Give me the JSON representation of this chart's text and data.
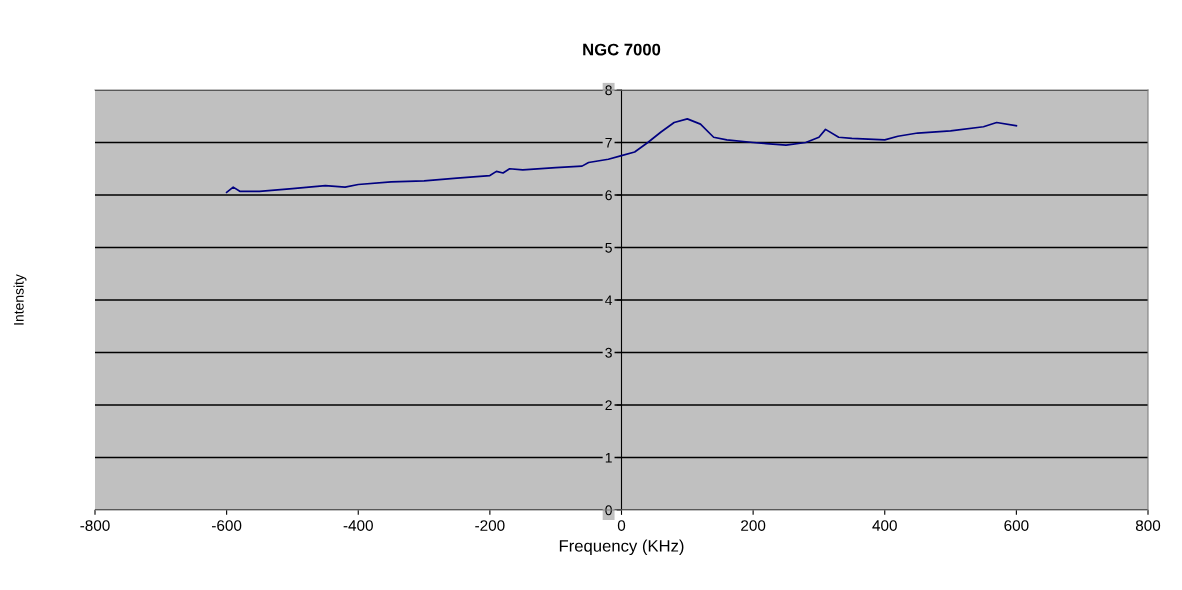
{
  "chart_data": {
    "type": "line",
    "title": "NGC 7000",
    "xlabel": "Frequency (KHz)",
    "ylabel": "Intensity",
    "x": [
      -600,
      -590,
      -580,
      -550,
      -500,
      -450,
      -420,
      -400,
      -350,
      -300,
      -250,
      -200,
      -190,
      -180,
      -170,
      -150,
      -100,
      -60,
      -50,
      -20,
      0,
      20,
      40,
      60,
      80,
      100,
      120,
      140,
      160,
      200,
      220,
      250,
      280,
      300,
      310,
      330,
      350,
      400,
      420,
      450,
      500,
      550,
      570,
      600
    ],
    "series": [
      {
        "color": "#000080",
        "values": [
          6.05,
          6.15,
          6.07,
          6.07,
          6.12,
          6.18,
          6.15,
          6.2,
          6.25,
          6.27,
          6.32,
          6.37,
          6.45,
          6.42,
          6.5,
          6.48,
          6.52,
          6.55,
          6.62,
          6.68,
          6.75,
          6.82,
          7.0,
          7.2,
          7.38,
          7.45,
          7.35,
          7.1,
          7.05,
          7.0,
          6.98,
          6.95,
          7.0,
          7.1,
          7.25,
          7.1,
          7.08,
          7.05,
          7.12,
          7.18,
          7.22,
          7.3,
          7.38,
          7.32
        ]
      }
    ],
    "xlim": [
      -800,
      800
    ],
    "xticks": [
      -800,
      -600,
      -400,
      -200,
      0,
      200,
      400,
      600,
      800
    ],
    "ylim": [
      0,
      8
    ],
    "yticks": [
      0,
      1,
      2,
      3,
      4,
      5,
      6,
      7,
      8
    ],
    "grid": "y",
    "marker": "none",
    "line_style": "solid",
    "legend": false
  }
}
